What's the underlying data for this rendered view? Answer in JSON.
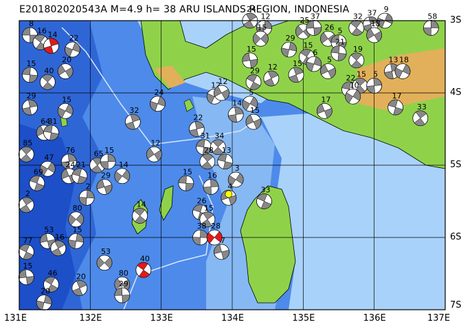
{
  "title": "E201802020543A  M=4.9  h= 38  ARU ISLANDS REGION, INDONESIA",
  "lon_labels": [
    "131E",
    "132E",
    "133E",
    "134E",
    "135E",
    "136E",
    "137E"
  ],
  "lat_labels": [
    "3S",
    "4S",
    "5S",
    "6S",
    "7S"
  ],
  "map": {
    "lon_range": [
      131,
      137
    ],
    "lat_range": [
      -7,
      -3
    ],
    "colors": {
      "deep_ocean": "#1c4fc8",
      "mid_ocean": "#3f7be6",
      "shallow_ocean": "#86b8f3",
      "shelf": "#a9d2fa",
      "land": "#8fd24a",
      "highland": "#e2b05a",
      "event_red": "#e11a1a",
      "epicenter": "#ffff00",
      "grid": "#000000"
    }
  },
  "events": [
    {
      "lon": 131.15,
      "lat": -3.2,
      "depth": "8",
      "color": "#888888"
    },
    {
      "lon": 131.3,
      "lat": -3.3,
      "depth": "16",
      "color": "#888888"
    },
    {
      "lon": 131.45,
      "lat": -3.35,
      "depth": "14",
      "color": "#e11a1a"
    },
    {
      "lon": 131.75,
      "lat": -3.4,
      "depth": "22",
      "color": "#888888"
    },
    {
      "lon": 131.65,
      "lat": -3.7,
      "depth": "20",
      "color": "#888888"
    },
    {
      "lon": 131.15,
      "lat": -3.75,
      "depth": "15",
      "color": "#888888"
    },
    {
      "lon": 131.4,
      "lat": -3.85,
      "depth": "40",
      "color": "#888888"
    },
    {
      "lon": 131.15,
      "lat": -4.2,
      "depth": "29",
      "color": "#888888"
    },
    {
      "lon": 131.65,
      "lat": -4.25,
      "depth": "15",
      "color": "#888888"
    },
    {
      "lon": 131.35,
      "lat": -4.55,
      "depth": "64",
      "color": "#888888"
    },
    {
      "lon": 131.45,
      "lat": -4.55,
      "depth": "31",
      "color": "#888888"
    },
    {
      "lon": 131.1,
      "lat": -4.85,
      "depth": "85",
      "color": "#888888"
    },
    {
      "lon": 131.7,
      "lat": -4.95,
      "depth": "76",
      "color": "#888888"
    },
    {
      "lon": 131.4,
      "lat": -5.05,
      "depth": "47",
      "color": "#888888"
    },
    {
      "lon": 131.7,
      "lat": -5.15,
      "depth": "24",
      "color": "#888888"
    },
    {
      "lon": 131.85,
      "lat": -5.15,
      "depth": "21",
      "color": "#888888"
    },
    {
      "lon": 132.1,
      "lat": -5.0,
      "depth": "65",
      "color": "#888888"
    },
    {
      "lon": 132.25,
      "lat": -4.95,
      "depth": "15",
      "color": "#888888"
    },
    {
      "lon": 132.45,
      "lat": -5.15,
      "depth": "14",
      "color": "#888888"
    },
    {
      "lon": 132.2,
      "lat": -5.3,
      "depth": "29",
      "color": "#888888"
    },
    {
      "lon": 131.25,
      "lat": -5.25,
      "depth": "69",
      "color": "#888888"
    },
    {
      "lon": 131.1,
      "lat": -5.55,
      "depth": "2",
      "color": "#888888"
    },
    {
      "lon": 131.95,
      "lat": -5.45,
      "depth": "2",
      "color": "#888888"
    },
    {
      "lon": 131.8,
      "lat": -5.75,
      "depth": "80",
      "color": "#888888"
    },
    {
      "lon": 131.4,
      "lat": -6.05,
      "depth": "53",
      "color": "#888888"
    },
    {
      "lon": 131.1,
      "lat": -6.2,
      "depth": "77",
      "color": "#888888"
    },
    {
      "lon": 131.55,
      "lat": -6.15,
      "depth": "16",
      "color": "#888888"
    },
    {
      "lon": 131.8,
      "lat": -6.05,
      "depth": "15",
      "color": "#888888"
    },
    {
      "lon": 132.2,
      "lat": -6.35,
      "depth": "53",
      "color": "#888888"
    },
    {
      "lon": 131.1,
      "lat": -6.55,
      "depth": "15",
      "color": "#888888"
    },
    {
      "lon": 131.45,
      "lat": -6.65,
      "depth": "46",
      "color": "#888888"
    },
    {
      "lon": 131.85,
      "lat": -6.7,
      "depth": "20",
      "color": "#888888"
    },
    {
      "lon": 131.35,
      "lat": -6.9,
      "depth": "20",
      "color": "#888888"
    },
    {
      "lon": 132.45,
      "lat": -6.65,
      "depth": "80",
      "color": "#888888"
    },
    {
      "lon": 132.45,
      "lat": -6.8,
      "depth": "29",
      "color": "#888888"
    },
    {
      "lon": 132.75,
      "lat": -6.45,
      "depth": "40",
      "color": "#e11a1a"
    },
    {
      "lon": 132.6,
      "lat": -4.4,
      "depth": "32",
      "color": "#888888"
    },
    {
      "lon": 132.95,
      "lat": -4.15,
      "depth": "24",
      "color": "#888888"
    },
    {
      "lon": 132.9,
      "lat": -4.85,
      "depth": "12",
      "color": "#888888"
    },
    {
      "lon": 133.35,
      "lat": -5.25,
      "depth": "15",
      "color": "#888888"
    },
    {
      "lon": 132.7,
      "lat": -5.7,
      "depth": "14",
      "color": "#888888"
    },
    {
      "lon": 133.5,
      "lat": -4.5,
      "depth": "22",
      "color": "#888888"
    },
    {
      "lon": 133.75,
      "lat": -4.05,
      "depth": "12",
      "color": "#888888"
    },
    {
      "lon": 133.85,
      "lat": -4.0,
      "depth": "12",
      "color": "#888888"
    },
    {
      "lon": 133.6,
      "lat": -4.75,
      "depth": "31",
      "color": "#888888"
    },
    {
      "lon": 133.8,
      "lat": -4.75,
      "depth": "34",
      "color": "#888888"
    },
    {
      "lon": 134.05,
      "lat": -4.3,
      "depth": "14",
      "color": "#888888"
    },
    {
      "lon": 134.25,
      "lat": -4.15,
      "depth": "5",
      "color": "#888888"
    },
    {
      "lon": 134.3,
      "lat": -4.4,
      "depth": "15",
      "color": "#888888"
    },
    {
      "lon": 133.9,
      "lat": -4.95,
      "depth": "13",
      "color": "#888888"
    },
    {
      "lon": 133.65,
      "lat": -4.95,
      "depth": "28",
      "color": "#888888"
    },
    {
      "lon": 133.7,
      "lat": -5.3,
      "depth": "16",
      "color": "#888888"
    },
    {
      "lon": 134.05,
      "lat": -5.2,
      "depth": "3",
      "color": "#888888"
    },
    {
      "lon": 133.95,
      "lat": -5.45,
      "depth": "4",
      "color": "#888888"
    },
    {
      "lon": 133.55,
      "lat": -5.65,
      "depth": "26",
      "color": "#888888"
    },
    {
      "lon": 133.65,
      "lat": -5.75,
      "depth": "15",
      "color": "#888888"
    },
    {
      "lon": 133.55,
      "lat": -6.0,
      "depth": "38",
      "color": "#888888"
    },
    {
      "lon": 133.75,
      "lat": -6.0,
      "depth": "28",
      "color": "#e11a1a"
    },
    {
      "lon": 133.85,
      "lat": -6.2,
      "depth": "7",
      "color": "#888888"
    },
    {
      "lon": 134.45,
      "lat": -5.5,
      "depth": "33",
      "color": "#888888"
    },
    {
      "lon": 134.25,
      "lat": -3.0,
      "depth": "24",
      "color": "#888888"
    },
    {
      "lon": 134.45,
      "lat": -3.1,
      "depth": "12",
      "color": "#888888"
    },
    {
      "lon": 134.4,
      "lat": -3.25,
      "depth": "15",
      "color": "#888888"
    },
    {
      "lon": 134.25,
      "lat": -3.55,
      "depth": "15",
      "color": "#888888"
    },
    {
      "lon": 134.3,
      "lat": -3.85,
      "depth": "29",
      "color": "#888888"
    },
    {
      "lon": 134.55,
      "lat": -3.8,
      "depth": "12",
      "color": "#888888"
    },
    {
      "lon": 134.8,
      "lat": -3.4,
      "depth": "29",
      "color": "#888888"
    },
    {
      "lon": 135.0,
      "lat": -3.15,
      "depth": "25",
      "color": "#888888"
    },
    {
      "lon": 135.15,
      "lat": -3.1,
      "depth": "37",
      "color": "#888888"
    },
    {
      "lon": 135.05,
      "lat": -3.5,
      "depth": "15",
      "color": "#888888"
    },
    {
      "lon": 134.9,
      "lat": -3.75,
      "depth": "15",
      "color": "#888888"
    },
    {
      "lon": 135.15,
      "lat": -3.6,
      "depth": "6",
      "color": "#888888"
    },
    {
      "lon": 135.35,
      "lat": -3.25,
      "depth": "26",
      "color": "#888888"
    },
    {
      "lon": 135.5,
      "lat": -3.3,
      "depth": "5",
      "color": "#888888"
    },
    {
      "lon": 135.75,
      "lat": -3.1,
      "depth": "32",
      "color": "#888888"
    },
    {
      "lon": 135.95,
      "lat": -3.05,
      "depth": "37",
      "color": "#888888"
    },
    {
      "lon": 136.15,
      "lat": -3.0,
      "depth": "9",
      "color": "#888888"
    },
    {
      "lon": 136.0,
      "lat": -3.2,
      "depth": "18",
      "color": "#888888"
    },
    {
      "lon": 135.5,
      "lat": -3.45,
      "depth": "21",
      "color": "#888888"
    },
    {
      "lon": 135.75,
      "lat": -3.55,
      "depth": "19",
      "color": "#888888"
    },
    {
      "lon": 136.25,
      "lat": -3.7,
      "depth": "13",
      "color": "#888888"
    },
    {
      "lon": 136.4,
      "lat": -3.7,
      "depth": "18",
      "color": "#888888"
    },
    {
      "lon": 135.35,
      "lat": -3.7,
      "depth": "5",
      "color": "#888888"
    },
    {
      "lon": 135.65,
      "lat": -3.95,
      "depth": "22",
      "color": "#888888"
    },
    {
      "lon": 135.8,
      "lat": -3.9,
      "depth": "15",
      "color": "#888888"
    },
    {
      "lon": 136.0,
      "lat": -3.9,
      "depth": "5",
      "color": "#888888"
    },
    {
      "lon": 135.7,
      "lat": -4.05,
      "depth": "10",
      "color": "#888888"
    },
    {
      "lon": 135.3,
      "lat": -4.25,
      "depth": "17",
      "color": "#888888"
    },
    {
      "lon": 136.3,
      "lat": -4.2,
      "depth": "17",
      "color": "#888888"
    },
    {
      "lon": 136.65,
      "lat": -4.35,
      "depth": "33",
      "color": "#888888"
    },
    {
      "lon": 136.8,
      "lat": -3.1,
      "depth": "58",
      "color": "#888888"
    }
  ],
  "epicenter": {
    "lon": 133.95,
    "lat": -5.4
  }
}
